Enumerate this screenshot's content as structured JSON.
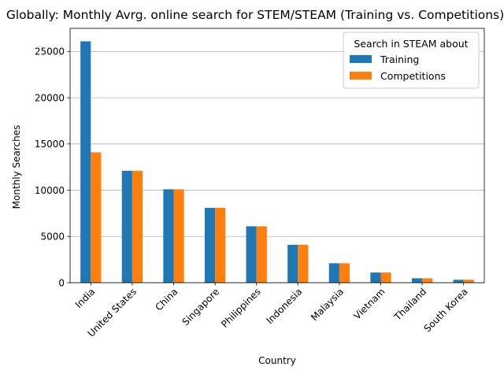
{
  "chart_data": {
    "type": "bar",
    "title": "Globally: Monthly Avrg. online search for STEM/STEAM (Training vs. Competitions)",
    "xlabel": "Country",
    "ylabel": "Monthly Searches",
    "categories": [
      "India",
      "United States",
      "China",
      "Singapore",
      "Philippines",
      "Indonesia",
      "Malaysia",
      "Vietnam",
      "Thailand",
      "South Korea"
    ],
    "series": [
      {
        "name": "Training",
        "color": "#1f77b4",
        "values": [
          26100,
          12100,
          10100,
          8100,
          6100,
          4100,
          2100,
          1100,
          480,
          320
        ]
      },
      {
        "name": "Competitions",
        "color": "#ff7f0e",
        "values": [
          14100,
          12100,
          10100,
          8100,
          6100,
          4100,
          2100,
          1100,
          480,
          320
        ]
      }
    ],
    "ylim": [
      0,
      27500
    ],
    "yticks": [
      0,
      5000,
      10000,
      15000,
      20000,
      25000
    ],
    "grid": "y",
    "legend": {
      "title": "Search in STEAM about",
      "position": "top-right"
    }
  }
}
